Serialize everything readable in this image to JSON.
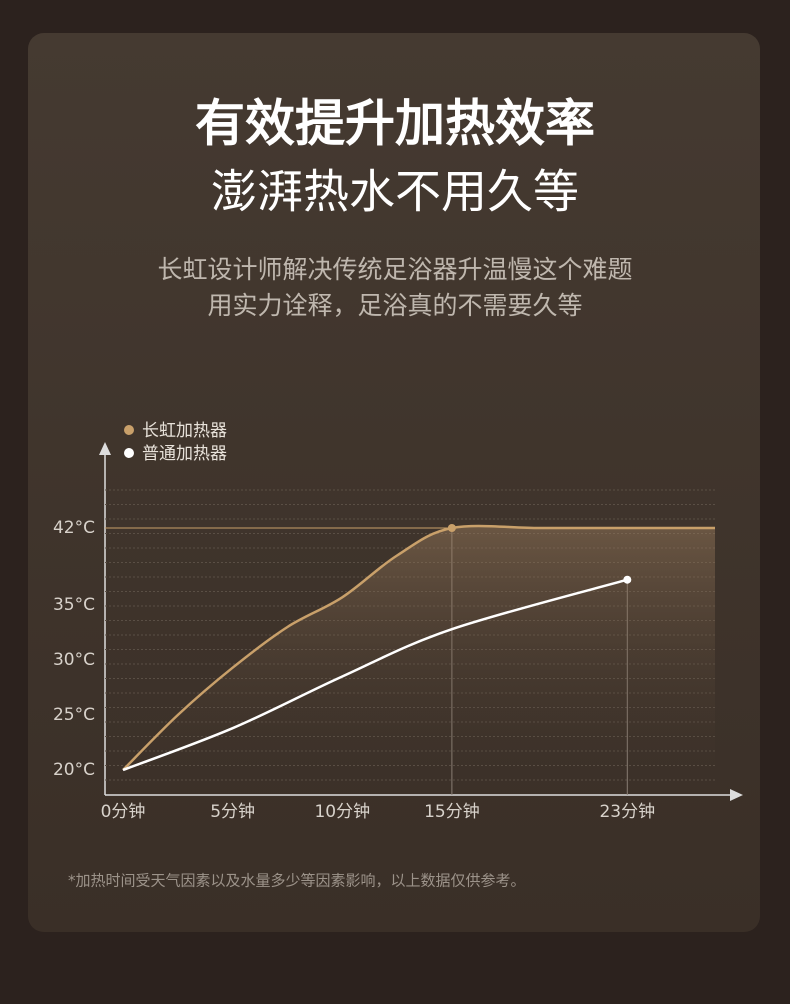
{
  "header": {
    "title": [
      "有效提升加热效率",
      "澎湃热水不用久等"
    ],
    "subtitle": [
      "长虹设计师解决传统足浴器升温慢这个难题",
      "用实力诠释，足浴真的不需要久等"
    ]
  },
  "chart_data": {
    "type": "line",
    "series": [
      {
        "name": "长虹加热器",
        "color": "#c9a06a",
        "x": [
          0,
          2.5,
          5,
          7.5,
          10,
          12.5,
          15,
          19,
          23,
          27
        ],
        "values": [
          20,
          25,
          29.3,
          33,
          35.7,
          39.5,
          42,
          42,
          42,
          42
        ]
      },
      {
        "name": "普通加热器",
        "color": "#ffffff",
        "x": [
          0,
          5,
          10,
          15,
          23
        ],
        "values": [
          20,
          23.8,
          28.5,
          32.8,
          37.3
        ]
      }
    ],
    "xlim": [
      0,
      27
    ],
    "xticks": [
      {
        "value": 0,
        "label": "0分钟"
      },
      {
        "value": 5,
        "label": "5分钟"
      },
      {
        "value": 10,
        "label": "10分钟"
      },
      {
        "value": 15,
        "label": "15分钟"
      },
      {
        "value": 23,
        "label": "23分钟"
      }
    ],
    "ylim": [
      18,
      46
    ],
    "yticks": [
      {
        "value": 20,
        "label": "20°C"
      },
      {
        "value": 25,
        "label": "25°C"
      },
      {
        "value": 30,
        "label": "30°C"
      },
      {
        "value": 35,
        "label": "35°C"
      },
      {
        "value": 42,
        "label": "42°C"
      }
    ],
    "grid": true
  },
  "footnote": "*加热时间受天气因素以及水量多少等因素影响，以上数据仅供参考。"
}
